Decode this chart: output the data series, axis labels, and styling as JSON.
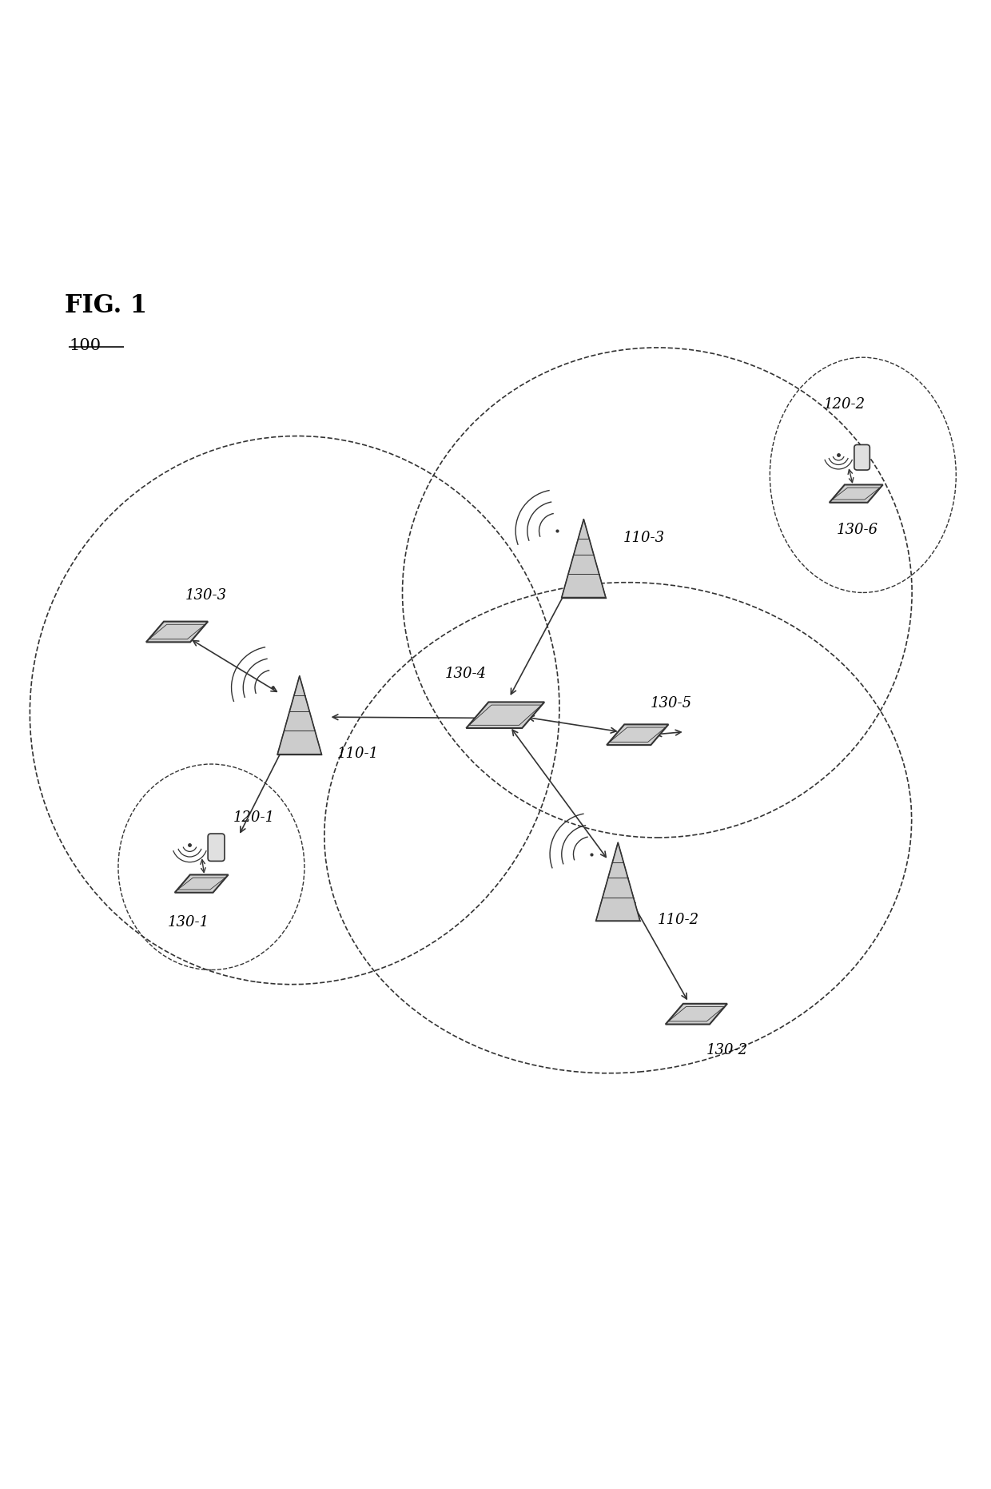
{
  "fig_label": "FIG. 1",
  "fig_number": "100",
  "background_color": "#ffffff",
  "figsize": [
    12.4,
    18.63
  ],
  "dpi": 100,
  "label_fontsize": 13,
  "title_fontsize": 22,
  "line_color": "#333333"
}
